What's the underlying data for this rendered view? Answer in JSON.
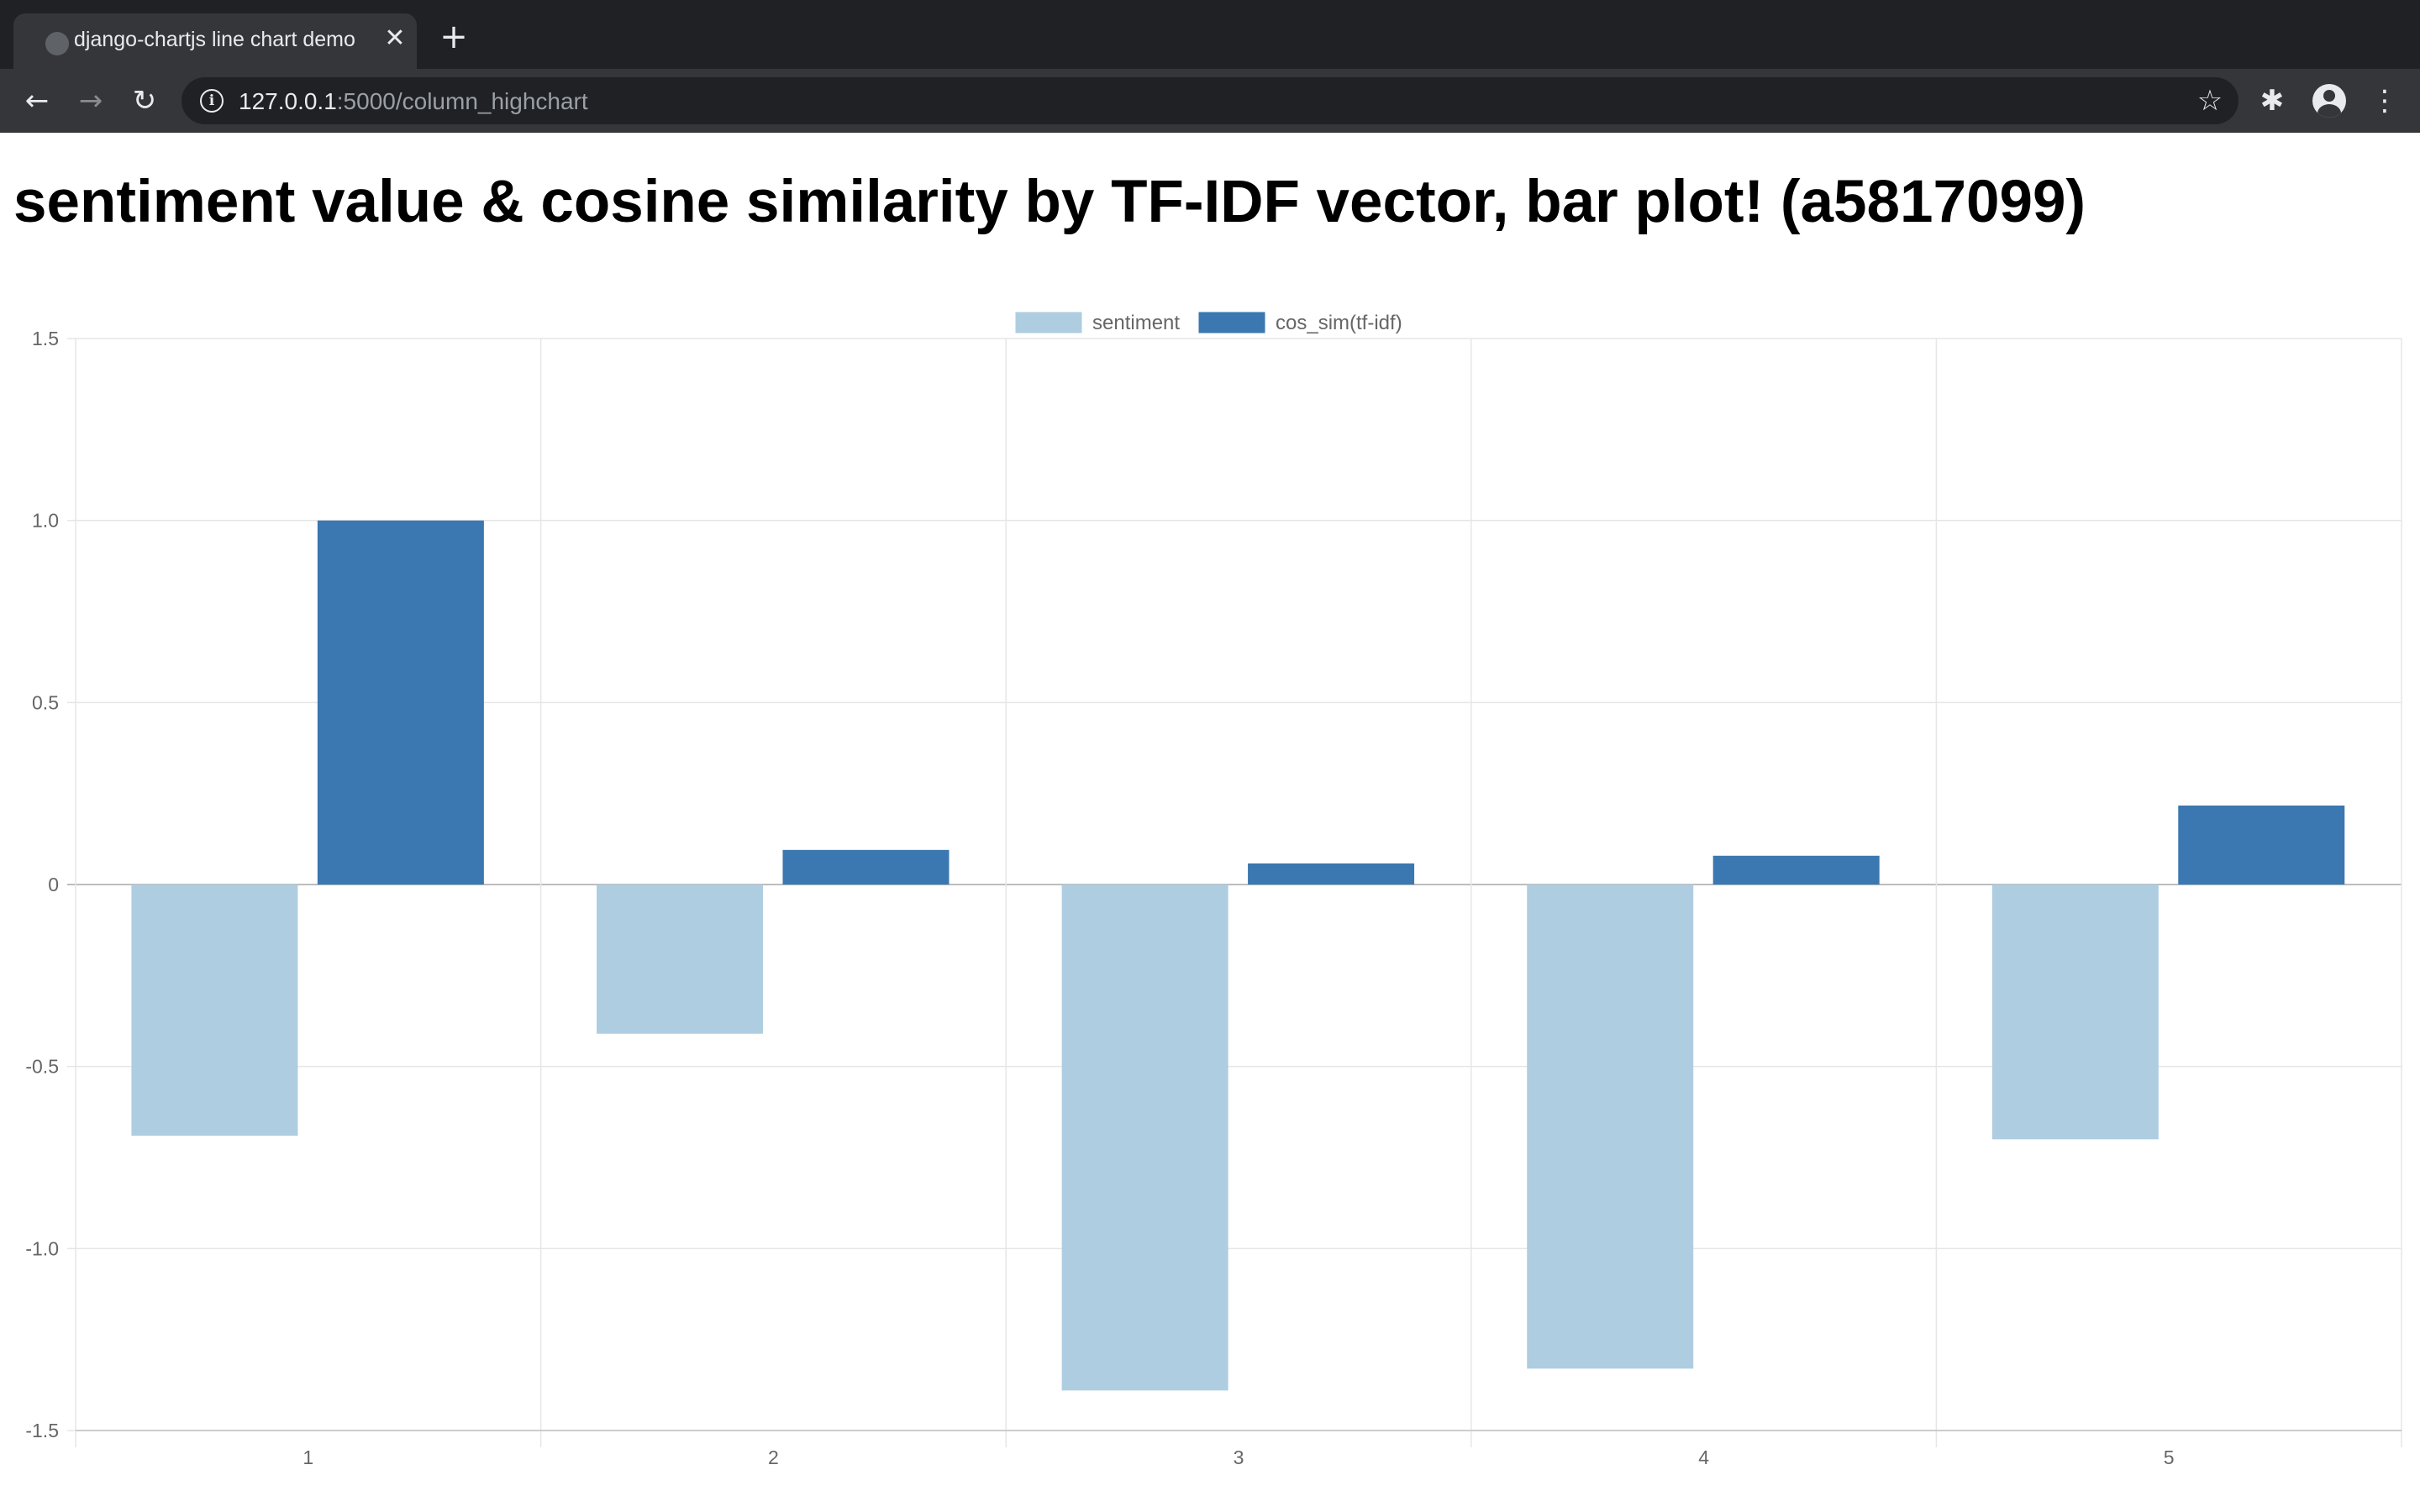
{
  "browser": {
    "tab_title": "django-chartjs line chart demo",
    "close_glyph": "✕",
    "newtab_glyph": "+",
    "url_host": "127.0.0.1",
    "url_rest": ":5000/column_highchart",
    "icons": {
      "back": "arrow-left",
      "forward": "arrow-right",
      "reload": "reload",
      "info": "info",
      "bookmark": "star",
      "extensions": "puzzle-piece",
      "profile": "account-circle",
      "menu": "kebab-menu"
    }
  },
  "page": {
    "title": "sentiment value & cosine similarity by TF-IDF vector, bar plot! (a5817099)"
  },
  "chart_data": {
    "type": "bar",
    "categories": [
      "1",
      "2",
      "3",
      "4",
      "5"
    ],
    "series": [
      {
        "name": "sentiment",
        "values": [
          -0.69,
          -0.41,
          -1.39,
          -1.33,
          -0.7
        ],
        "color": "#aecde1"
      },
      {
        "name": "cos_sim(tf-idf)",
        "values": [
          1.0,
          0.095,
          0.058,
          0.079,
          0.217
        ],
        "color": "#3b77b0"
      }
    ],
    "ylim": [
      -1.5,
      1.5
    ],
    "yticks": [
      1.5,
      1.0,
      0.5,
      0,
      -0.5,
      -1.0,
      -1.5
    ],
    "ytick_labels": [
      "1.5",
      "1.0",
      "0.5",
      "0",
      "-0.5",
      "-1.0",
      "-1.5"
    ],
    "grid": true,
    "legend_position": "top-center",
    "title": "",
    "xlabel": "",
    "ylabel": ""
  }
}
